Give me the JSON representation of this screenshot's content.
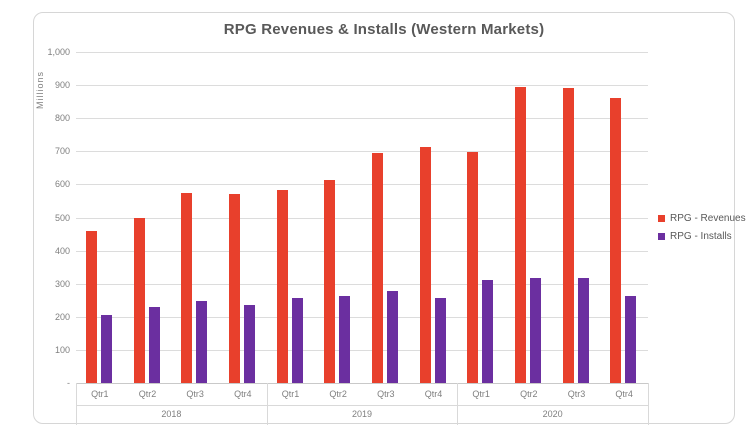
{
  "chart": {
    "title": "RPG Revenues & Installs (Western Markets)",
    "y_axis_label": "Millions",
    "y_tick_labels": [
      "1,000",
      "900",
      "800",
      "700",
      "600",
      "500",
      "400",
      "300",
      "200",
      "100",
      "-"
    ],
    "grid_color": "#dcdcdc",
    "text_color": "#7f7f7f",
    "title_color": "#595959"
  },
  "chart_data": {
    "type": "bar",
    "title": "RPG Revenues & Installs (Western Markets)",
    "ylabel": "Millions",
    "ylim": [
      0,
      1000
    ],
    "ytick_step": 100,
    "grid": true,
    "legend_position": "right",
    "groups": [
      {
        "label": "2018",
        "categories": [
          "Qtr1",
          "Qtr2",
          "Qtr3",
          "Qtr4"
        ]
      },
      {
        "label": "2019",
        "categories": [
          "Qtr1",
          "Qtr2",
          "Qtr3",
          "Qtr4"
        ]
      },
      {
        "label": "2020",
        "categories": [
          "Qtr1",
          "Qtr2",
          "Qtr3",
          "Qtr4"
        ]
      }
    ],
    "categories": [
      "Qtr1",
      "Qtr2",
      "Qtr3",
      "Qtr4",
      "Qtr1",
      "Qtr2",
      "Qtr3",
      "Qtr4",
      "Qtr1",
      "Qtr2",
      "Qtr3",
      "Qtr4"
    ],
    "series": [
      {
        "name": "RPG - Revenues",
        "color": "#e8402c",
        "values": [
          460,
          500,
          575,
          572,
          583,
          612,
          695,
          712,
          698,
          895,
          890,
          862
        ]
      },
      {
        "name": "RPG - Installs",
        "color": "#6b2fa0",
        "values": [
          205,
          230,
          247,
          235,
          258,
          262,
          278,
          258,
          310,
          317,
          317,
          262
        ]
      }
    ]
  }
}
